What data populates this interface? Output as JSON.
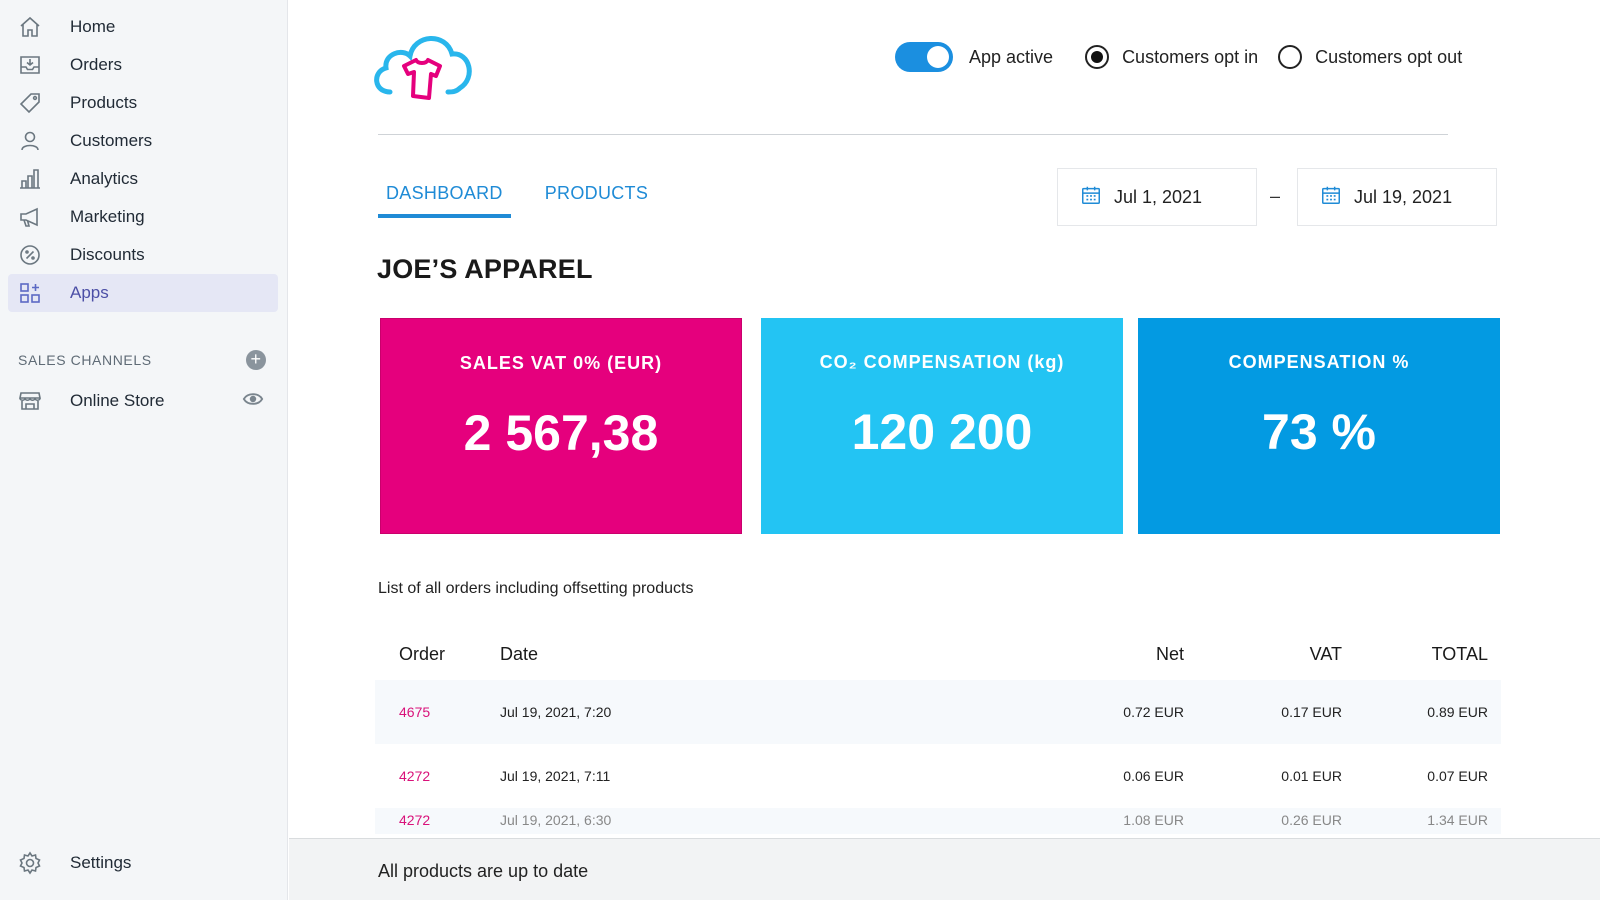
{
  "sidebar": {
    "items": [
      {
        "label": "Home",
        "icon": "home-icon"
      },
      {
        "label": "Orders",
        "icon": "inbox-icon"
      },
      {
        "label": "Products",
        "icon": "tag-icon"
      },
      {
        "label": "Customers",
        "icon": "person-icon"
      },
      {
        "label": "Analytics",
        "icon": "bar-chart-icon"
      },
      {
        "label": "Marketing",
        "icon": "megaphone-icon"
      },
      {
        "label": "Discounts",
        "icon": "discount-icon"
      },
      {
        "label": "Apps",
        "icon": "apps-icon",
        "active": true
      }
    ],
    "channels_heading": "SALES CHANNELS",
    "online_store": "Online Store",
    "settings": "Settings"
  },
  "topbar": {
    "toggle_label": "App active",
    "toggle_on": true,
    "opt_in_label": "Customers opt in",
    "opt_in_selected": true,
    "opt_out_label": "Customers opt out"
  },
  "tabs": {
    "dashboard": "DASHBOARD",
    "products": "PRODUCTS"
  },
  "dates": {
    "from": "Jul 1, 2021",
    "separator": "–",
    "to": "Jul 19, 2021"
  },
  "store_name": "JOE’S APPAREL",
  "cards": {
    "sales_label": "SALES VAT 0% (EUR)",
    "sales_value": "2 567,38",
    "co2_label": "CO₂ COMPENSATION (kg)",
    "co2_value": "120 200",
    "comp_label": "COMPENSATION %",
    "comp_value": "73 %"
  },
  "caption": "List of all orders including offsetting products",
  "table": {
    "headers": {
      "order": "Order",
      "date": "Date",
      "net": "Net",
      "vat": "VAT",
      "total": "TOTAL"
    },
    "rows": [
      {
        "order": "4675",
        "date": "Jul 19, 2021, 7:20",
        "net": "0.72 EUR",
        "vat": "0.17 EUR",
        "total": "0.89 EUR"
      },
      {
        "order": "4272",
        "date": "Jul 19, 2021, 7:11",
        "net": "0.06 EUR",
        "vat": "0.01 EUR",
        "total": "0.07 EUR"
      },
      {
        "order": "4272",
        "date": "Jul 19, 2021, 6:30",
        "net": "1.08 EUR",
        "vat": "0.26 EUR",
        "total": "1.34 EUR"
      }
    ]
  },
  "toast": "All products are up to date",
  "colors": {
    "pink": "#e5007d",
    "cyan": "#23c4f3",
    "blue": "#039ae2",
    "accent": "#1f8bd6"
  }
}
